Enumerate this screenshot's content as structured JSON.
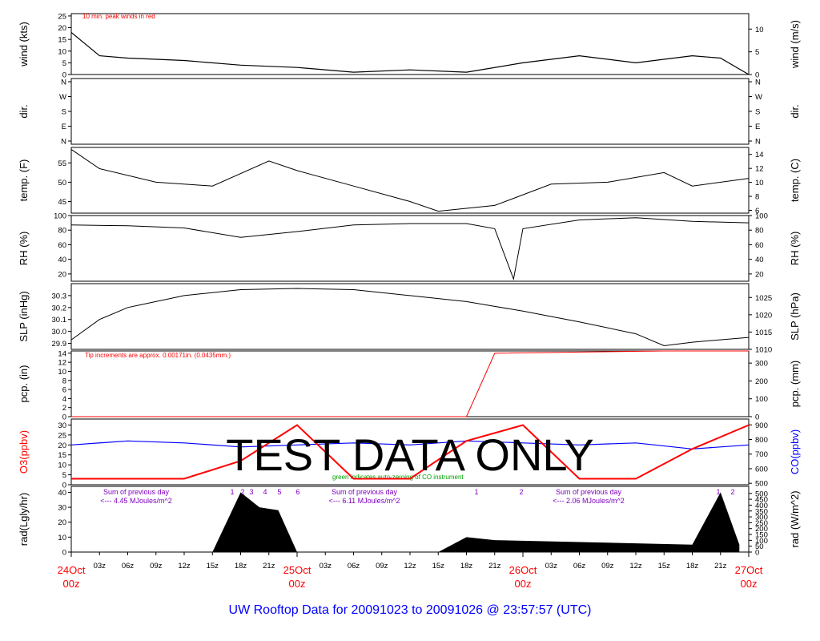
{
  "title": "UW Rooftop Data for 20091023  to  20091026 @ 23:57:57  (UTC)",
  "watermark": "TEST   DATA   ONLY",
  "colors": {
    "red": "#ff0000",
    "blue": "#0000ff",
    "green": "#00a000",
    "purple": "#8000c0",
    "black": "#000000"
  },
  "x_axis": {
    "hours": [
      "03z",
      "06z",
      "09z",
      "12z",
      "15z",
      "18z",
      "21z",
      "03z",
      "06z",
      "09z",
      "12z",
      "15z",
      "18z",
      "21z",
      "03z",
      "06z",
      "09z",
      "12z",
      "15z",
      "18z",
      "21z"
    ],
    "days": [
      {
        "day": "24Oct",
        "hour": "00z"
      },
      {
        "day": "25Oct",
        "hour": "00z"
      },
      {
        "day": "26Oct",
        "hour": "00z"
      },
      {
        "day": "27Oct",
        "hour": "00z"
      }
    ]
  },
  "panels": {
    "wind": {
      "left_label": "wind (kts)",
      "right_label": "wind (m/s)",
      "left_ticks": [
        "25",
        "20",
        "15",
        "10",
        "5",
        "0"
      ],
      "right_ticks": [
        "10",
        "5",
        "0"
      ],
      "note": "10 min. peak winds in red"
    },
    "dir": {
      "left_label": "dir.",
      "right_label": "dir.",
      "left_ticks": [
        "N",
        "W",
        "S",
        "E",
        "N"
      ],
      "right_ticks": [
        "N",
        "W",
        "S",
        "E",
        "N"
      ]
    },
    "temp": {
      "left_label": "temp. (F)",
      "right_label": "temp. (C)",
      "left_ticks": [
        "55",
        "50",
        "45"
      ],
      "right_ticks": [
        "14",
        "12",
        "10",
        "8",
        "6"
      ]
    },
    "rh": {
      "left_label": "RH (%)",
      "right_label": "RH (%)",
      "left_ticks": [
        "100",
        "80",
        "60",
        "40",
        "20"
      ],
      "right_ticks": [
        "100",
        "80",
        "60",
        "40",
        "20"
      ]
    },
    "slp": {
      "left_label": "SLP (inHg)",
      "right_label": "SLP (hPa)",
      "left_ticks": [
        "30.3",
        "30.2",
        "30.1",
        "30.0",
        "29.9"
      ],
      "right_ticks": [
        "1025",
        "1020",
        "1015",
        "1010"
      ]
    },
    "pcp": {
      "left_label": "pcp. (in)",
      "right_label": "pcp. (mm)",
      "left_ticks": [
        "14",
        "12",
        "10",
        "8",
        "6",
        "4",
        "2",
        "0"
      ],
      "right_ticks": [
        "300",
        "200",
        "100",
        "0"
      ],
      "note": "Tip increments are approx. 0.00171in. (0.0435mm.)"
    },
    "o3": {
      "left_label": "O3(ppbv)",
      "right_label": "CO(ppbv)",
      "left_ticks": [
        "30",
        "25",
        "20",
        "15",
        "10",
        "5",
        "0"
      ],
      "right_ticks": [
        "900",
        "800",
        "700",
        "600",
        "500"
      ],
      "note": "green indicates auto-zeroing of CO instrument"
    },
    "rad": {
      "left_label": "rad(Lgly/hr)",
      "right_label": "rad (W/m^2)",
      "left_ticks": [
        "40",
        "30",
        "20",
        "10",
        "0"
      ],
      "right_ticks": [
        "500",
        "450",
        "400",
        "350",
        "300",
        "250",
        "200",
        "150",
        "100",
        "50",
        "0"
      ],
      "sums": [
        {
          "line1": "Sum of previous day",
          "line2": "<--- 4.45 MJoules/m^2"
        },
        {
          "line1": "Sum of previous day",
          "line2": "<--- 6.11 MJoules/m^2"
        },
        {
          "line1": "Sum of previous day",
          "line2": "<--- 2.06 MJoules/m^2"
        }
      ],
      "markers": [
        "1",
        "2",
        "3",
        "4",
        "5",
        "6",
        "1",
        "2",
        "1",
        "2"
      ]
    }
  },
  "chart_data": [
    {
      "type": "line",
      "title": "wind",
      "xlabel": "",
      "ylabel": "wind (kts)",
      "ylim": [
        0,
        26
      ],
      "x": [
        "24Oct 00z",
        "24Oct 03z",
        "24Oct 06z",
        "24Oct 12z",
        "24Oct 18z",
        "25Oct 00z",
        "25Oct 06z",
        "25Oct 12z",
        "25Oct 18z",
        "26Oct 00z",
        "26Oct 06z",
        "26Oct 12z",
        "26Oct 18z",
        "26Oct 21z",
        "27Oct 00z"
      ],
      "series": [
        {
          "name": "",
          "values": [
            18,
            8,
            7,
            6,
            4,
            3,
            1,
            2,
            1,
            5,
            8,
            5,
            8,
            7,
            0
          ]
        }
      ]
    },
    {
      "type": "line",
      "title": "temp.",
      "xlabel": "",
      "ylabel": "temp. (F)",
      "ylim": [
        42,
        59
      ],
      "x": [
        "24Oct 00z",
        "24Oct 03z",
        "24Oct 09z",
        "24Oct 15z",
        "24Oct 21z",
        "25Oct 00z",
        "25Oct 06z",
        "25Oct 12z",
        "25Oct 15z",
        "25Oct 21z",
        "26Oct 03z",
        "26Oct 09z",
        "26Oct 15z",
        "26Oct 18z",
        "27Oct 00z"
      ],
      "series": [
        {
          "name": "",
          "values": [
            58.5,
            53.5,
            50,
            49,
            55.5,
            53,
            49,
            45,
            42.5,
            44,
            49.5,
            50,
            52.5,
            49,
            51
          ]
        }
      ]
    },
    {
      "type": "line",
      "title": "RH",
      "xlabel": "",
      "ylabel": "RH (%)",
      "ylim": [
        10,
        100
      ],
      "x": [
        "24Oct 00z",
        "24Oct 06z",
        "24Oct 12z",
        "24Oct 18z",
        "25Oct 00z",
        "25Oct 06z",
        "25Oct 12z",
        "25Oct 18z",
        "25Oct 21z",
        "25Oct 23z",
        "26Oct 00z",
        "26Oct 06z",
        "26Oct 12z",
        "26Oct 18z",
        "27Oct 00z"
      ],
      "series": [
        {
          "name": "",
          "values": [
            87,
            86,
            83,
            70,
            78,
            87,
            89,
            89,
            82,
            13,
            82,
            94,
            97,
            92,
            90
          ]
        }
      ]
    },
    {
      "type": "line",
      "title": "SLP",
      "xlabel": "",
      "ylabel": "SLP (inHg)",
      "ylim": [
        29.85,
        30.4
      ],
      "x": [
        "24Oct 00z",
        "24Oct 03z",
        "24Oct 06z",
        "24Oct 12z",
        "24Oct 18z",
        "25Oct 00z",
        "25Oct 06z",
        "25Oct 12z",
        "25Oct 18z",
        "26Oct 00z",
        "26Oct 06z",
        "26Oct 12z",
        "26Oct 15z",
        "26Oct 18z",
        "27Oct 00z"
      ],
      "series": [
        {
          "name": "",
          "values": [
            29.93,
            30.1,
            30.2,
            30.3,
            30.35,
            30.36,
            30.35,
            30.3,
            30.25,
            30.17,
            30.08,
            29.98,
            29.88,
            29.91,
            29.95
          ]
        }
      ]
    },
    {
      "type": "line",
      "title": "pcp.",
      "xlabel": "",
      "ylabel": "pcp. (in)",
      "ylim": [
        0,
        14
      ],
      "x": [
        "24Oct 00z",
        "25Oct 18z",
        "25Oct 21z",
        "26Oct 15z",
        "27Oct 00z"
      ],
      "series": [
        {
          "name": "",
          "values": [
            0,
            0,
            13.5,
            14,
            14
          ]
        }
      ]
    },
    {
      "type": "line",
      "title": "O3 / CO",
      "xlabel": "",
      "ylabel": "O3(ppbv)",
      "ylim": [
        0,
        33
      ],
      "x": [
        "24Oct 00z",
        "24Oct 06z",
        "24Oct 12z",
        "24Oct 18z",
        "25Oct 00z",
        "25Oct 06z",
        "25Oct 12z",
        "25Oct 18z",
        "26Oct 00z",
        "26Oct 06z",
        "26Oct 12z",
        "26Oct 18z",
        "27Oct 00z"
      ],
      "series": [
        {
          "name": "",
          "values": [
            3,
            3,
            3,
            12,
            30,
            3,
            3,
            22,
            30,
            3,
            3,
            18,
            30
          ]
        },
        {
          "name": "",
          "values": [
            20,
            22,
            21,
            19,
            20,
            21,
            20,
            22,
            21,
            20,
            21,
            18,
            20
          ]
        }
      ]
    },
    {
      "type": "area",
      "title": "rad",
      "xlabel": "",
      "ylabel": "rad(Lgly/hr)",
      "ylim": [
        0,
        44
      ],
      "x": [
        "24Oct 15z",
        "24Oct 18z",
        "24Oct 20z",
        "24Oct 22z",
        "25Oct 00z",
        "25Oct 15z",
        "25Oct 18z",
        "25Oct 21z",
        "26Oct 18z",
        "26Oct 21z",
        "26Oct 23z"
      ],
      "series": [
        {
          "name": "",
          "values": [
            0,
            40,
            30,
            28,
            0,
            0,
            10,
            8,
            5,
            40,
            5
          ]
        }
      ]
    }
  ]
}
